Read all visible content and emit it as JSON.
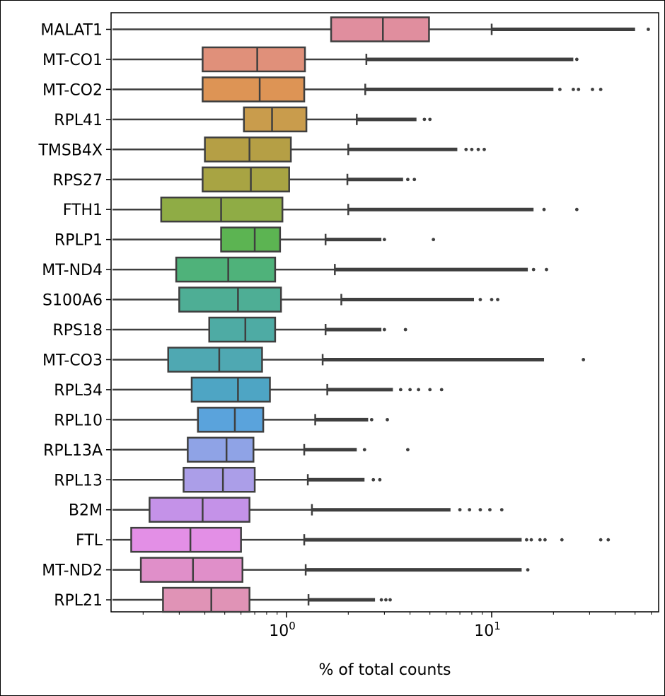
{
  "chart_data": {
    "type": "box",
    "orientation": "horizontal",
    "xscale": "log",
    "xlabel": "% of total counts",
    "xlim": [
      0.1,
      100
    ],
    "xticks": [
      {
        "value": 1,
        "base": "10",
        "exp": "0"
      },
      {
        "value": 10,
        "base": "10",
        "exp": "1"
      }
    ],
    "grid": false,
    "series": [
      {
        "name": "MALAT1",
        "color": "#e08e9e",
        "whisker_low": 0.125,
        "q1": 1.65,
        "median": 2.95,
        "q3": 4.95,
        "whisker_high": 10.0,
        "outliers_dense_to": 50.0,
        "outliers_sparse": [
          58.0
        ]
      },
      {
        "name": "MT-CO1",
        "color": "#e0907a",
        "whisker_low": 0.125,
        "q1": 0.39,
        "median": 0.72,
        "q3": 1.23,
        "whisker_high": 2.45,
        "outliers_dense_to": 25.0,
        "outliers_sparse": [
          26.0
        ]
      },
      {
        "name": "MT-CO2",
        "color": "#dd9455",
        "whisker_low": 0.125,
        "q1": 0.39,
        "median": 0.74,
        "q3": 1.22,
        "whisker_high": 2.42,
        "outliers_dense_to": 20.0,
        "outliers_sparse": [
          21.5,
          25.0,
          26.5,
          31.0,
          34.0
        ]
      },
      {
        "name": "RPL41",
        "color": "#c99c4c",
        "whisker_low": 0.125,
        "q1": 0.62,
        "median": 0.85,
        "q3": 1.25,
        "whisker_high": 2.2,
        "outliers_dense_to": 4.3,
        "outliers_sparse": [
          4.7,
          5.0
        ]
      },
      {
        "name": "TMSB4X",
        "color": "#b59f45",
        "whisker_low": 0.125,
        "q1": 0.4,
        "median": 0.66,
        "q3": 1.05,
        "whisker_high": 2.0,
        "outliers_dense_to": 6.8,
        "outliers_sparse": [
          7.5,
          8.0,
          8.6,
          9.2
        ]
      },
      {
        "name": "RPS27",
        "color": "#a8a443",
        "whisker_low": 0.125,
        "q1": 0.39,
        "median": 0.67,
        "q3": 1.03,
        "whisker_high": 1.98,
        "outliers_dense_to": 3.7,
        "outliers_sparse": [
          3.9,
          4.2
        ]
      },
      {
        "name": "FTH1",
        "color": "#8fac45",
        "whisker_low": 0.125,
        "q1": 0.245,
        "median": 0.48,
        "q3": 0.955,
        "whisker_high": 2.0,
        "outliers_dense_to": 16.0,
        "outliers_sparse": [
          18.0,
          26.0
        ]
      },
      {
        "name": "RPLP1",
        "color": "#5cb452",
        "whisker_low": 0.125,
        "q1": 0.48,
        "median": 0.7,
        "q3": 0.93,
        "whisker_high": 1.55,
        "outliers_dense_to": 2.9,
        "outliers_sparse": [
          3.0,
          5.2
        ]
      },
      {
        "name": "MT-ND4",
        "color": "#4fb27a",
        "whisker_low": 0.125,
        "q1": 0.29,
        "median": 0.52,
        "q3": 0.88,
        "whisker_high": 1.72,
        "outliers_dense_to": 15.0,
        "outliers_sparse": [
          16.0,
          18.5
        ]
      },
      {
        "name": "S100A6",
        "color": "#4eae95",
        "whisker_low": 0.125,
        "q1": 0.3,
        "median": 0.58,
        "q3": 0.94,
        "whisker_high": 1.85,
        "outliers_dense_to": 8.2,
        "outliers_sparse": [
          8.8,
          10.0,
          10.7
        ]
      },
      {
        "name": "RPS18",
        "color": "#4eaba4",
        "whisker_low": 0.125,
        "q1": 0.42,
        "median": 0.63,
        "q3": 0.88,
        "whisker_high": 1.55,
        "outliers_dense_to": 2.9,
        "outliers_sparse": [
          3.0,
          3.8
        ]
      },
      {
        "name": "MT-CO3",
        "color": "#4fa8b2",
        "whisker_low": 0.125,
        "q1": 0.265,
        "median": 0.47,
        "q3": 0.76,
        "whisker_high": 1.5,
        "outliers_dense_to": 18.0,
        "outliers_sparse": [
          28.0
        ]
      },
      {
        "name": "RPL34",
        "color": "#4ea5c4",
        "whisker_low": 0.125,
        "q1": 0.345,
        "median": 0.58,
        "q3": 0.83,
        "whisker_high": 1.58,
        "outliers_dense_to": 3.3,
        "outliers_sparse": [
          3.6,
          4.0,
          4.4,
          5.0,
          5.7
        ]
      },
      {
        "name": "RPL10",
        "color": "#5aa3dc",
        "whisker_low": 0.125,
        "q1": 0.37,
        "median": 0.56,
        "q3": 0.77,
        "whisker_high": 1.38,
        "outliers_dense_to": 2.5,
        "outliers_sparse": [
          2.6,
          3.1
        ]
      },
      {
        "name": "RPL13A",
        "color": "#8fa3e6",
        "whisker_low": 0.125,
        "q1": 0.33,
        "median": 0.51,
        "q3": 0.69,
        "whisker_high": 1.22,
        "outliers_dense_to": 2.2,
        "outliers_sparse": [
          2.4,
          3.9
        ]
      },
      {
        "name": "RPL13",
        "color": "#ab9ee8",
        "whisker_low": 0.125,
        "q1": 0.315,
        "median": 0.49,
        "q3": 0.7,
        "whisker_high": 1.27,
        "outliers_dense_to": 2.4,
        "outliers_sparse": [
          2.65,
          2.85
        ]
      },
      {
        "name": "B2M",
        "color": "#c492e8",
        "whisker_low": 0.125,
        "q1": 0.215,
        "median": 0.39,
        "q3": 0.66,
        "whisker_high": 1.33,
        "outliers_dense_to": 6.3,
        "outliers_sparse": [
          7.0,
          7.8,
          8.8,
          9.8,
          11.2
        ]
      },
      {
        "name": "FTL",
        "color": "#e38fe6",
        "whisker_low": 0.125,
        "q1": 0.175,
        "median": 0.34,
        "q3": 0.6,
        "whisker_high": 1.22,
        "outliers_dense_to": 14.0,
        "outliers_sparse": [
          14.8,
          15.6,
          17.2,
          18.2,
          22.0,
          34.0,
          37.0
        ]
      },
      {
        "name": "MT-ND2",
        "color": "#e08fc9",
        "whisker_low": 0.125,
        "q1": 0.195,
        "median": 0.35,
        "q3": 0.61,
        "whisker_high": 1.24,
        "outliers_dense_to": 14.0,
        "outliers_sparse": [
          15.0
        ]
      },
      {
        "name": "RPL21",
        "color": "#e093b6",
        "whisker_low": 0.125,
        "q1": 0.25,
        "median": 0.43,
        "q3": 0.66,
        "whisker_high": 1.28,
        "outliers_dense_to": 2.7,
        "outliers_sparse": [
          2.9,
          3.05,
          3.2
        ]
      }
    ]
  }
}
